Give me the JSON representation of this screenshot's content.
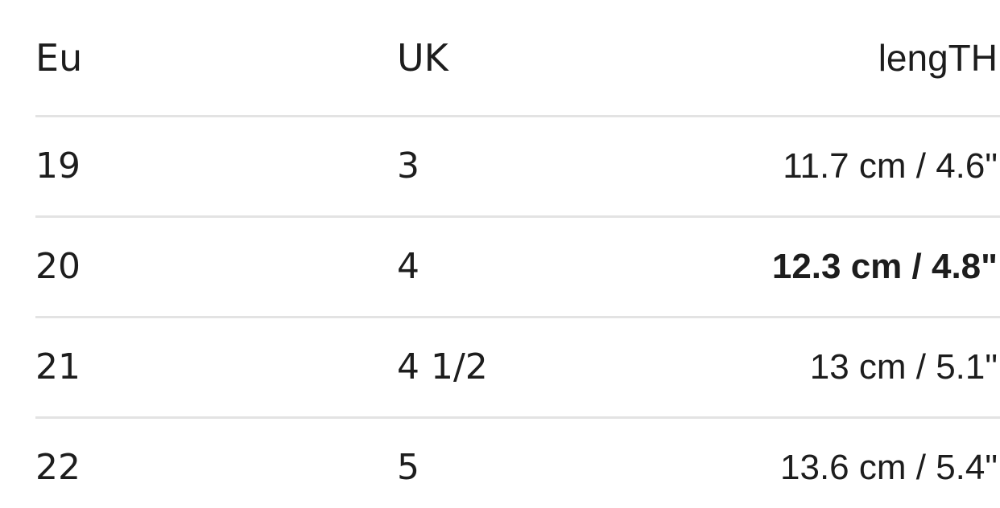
{
  "chart_data": {
    "type": "table",
    "title": "",
    "columns": [
      "Eu",
      "UK",
      "lengTH"
    ],
    "rows": [
      [
        "19",
        "3",
        "11.7 cm / 4.6\""
      ],
      [
        "20",
        "4",
        "12.3 cm / 4.8\""
      ],
      [
        "21",
        "4 1/2",
        "13 cm / 5.1\""
      ],
      [
        "22",
        "5",
        "13.6 cm / 5.4\""
      ]
    ],
    "emphasized_row": 1,
    "emphasized_column": 2,
    "layout_hints": {
      "column_alignment": [
        "left",
        "left",
        "right"
      ],
      "row_dividers": true,
      "header_divider": true
    }
  },
  "colors": {
    "text": "#1d1d1d",
    "divider": "#e3e3e3",
    "background": "#ffffff"
  }
}
